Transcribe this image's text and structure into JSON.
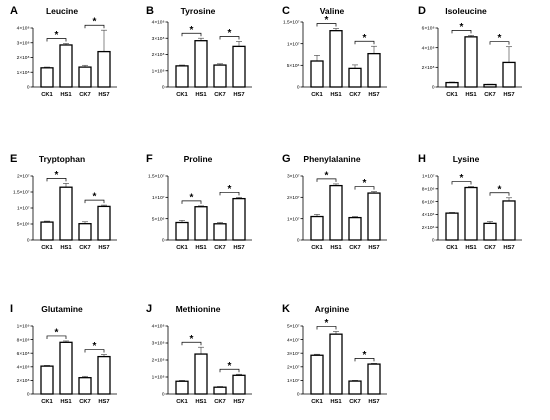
{
  "figure": {
    "panels": [
      {
        "letter": "A",
        "title": "Leucine"
      },
      {
        "letter": "B",
        "title": "Tyrosine"
      },
      {
        "letter": "C",
        "title": "Valine"
      },
      {
        "letter": "D",
        "title": "Isoleucine"
      },
      {
        "letter": "E",
        "title": "Tryptophan"
      },
      {
        "letter": "F",
        "title": "Proline"
      },
      {
        "letter": "G",
        "title": "Phenylalanine"
      },
      {
        "letter": "H",
        "title": "Lysine"
      },
      {
        "letter": "I",
        "title": "Glutamine"
      },
      {
        "letter": "J",
        "title": "Methionine"
      },
      {
        "letter": "K",
        "title": "Arginine"
      }
    ]
  },
  "chart_data": [
    {
      "type": "bar",
      "letter": "A",
      "title": "Leucine",
      "categories": [
        "CK1",
        "HS1",
        "CK7",
        "HS7"
      ],
      "values": [
        130000000.0,
        285000000.0,
        135000000.0,
        240000000.0
      ],
      "errors": [
        5000000.0,
        10000000.0,
        12000000.0,
        145000000.0
      ],
      "ylim": [
        0,
        400000000.0
      ],
      "yticks": [
        0,
        100000000.0,
        200000000.0,
        300000000.0,
        400000000.0
      ],
      "ytick_labels": [
        "0",
        "1×10⁸",
        "2×10⁸",
        "3×10⁸",
        "4×10⁸"
      ],
      "significance": [
        {
          "pair": [
            "CK1",
            "HS1"
          ],
          "label": "*"
        },
        {
          "pair": [
            "CK7",
            "HS7"
          ],
          "label": "*"
        }
      ],
      "xlabel": "",
      "ylabel": ""
    },
    {
      "type": "bar",
      "letter": "B",
      "title": "Tyrosine",
      "categories": [
        "CK1",
        "HS1",
        "CK7",
        "HS7"
      ],
      "values": [
        130000000.0,
        285000000.0,
        135000000.0,
        250000000.0
      ],
      "errors": [
        5000000.0,
        15000000.0,
        8000000.0,
        30000000.0
      ],
      "ylim": [
        0,
        400000000.0
      ],
      "yticks": [
        0,
        100000000.0,
        200000000.0,
        300000000.0,
        400000000.0
      ],
      "ytick_labels": [
        "0",
        "1×10⁸",
        "2×10⁸",
        "3×10⁸",
        "4×10⁸"
      ],
      "significance": [
        {
          "pair": [
            "CK1",
            "HS1"
          ],
          "label": "*"
        },
        {
          "pair": [
            "CK7",
            "HS7"
          ],
          "label": "*"
        }
      ],
      "xlabel": "",
      "ylabel": ""
    },
    {
      "type": "bar",
      "letter": "C",
      "title": "Valine",
      "categories": [
        "CK1",
        "HS1",
        "CK7",
        "HS7"
      ],
      "values": [
        6000000.0,
        13000000.0,
        4300000.0,
        7700000.0
      ],
      "errors": [
        1300000.0,
        500000.0,
        800000.0,
        1700000.0
      ],
      "ylim": [
        0,
        15000000.0
      ],
      "yticks": [
        0,
        5000000.0,
        10000000.0,
        15000000.0
      ],
      "ytick_labels": [
        "0",
        "5×10⁶",
        "1×10⁷",
        "1.5×10⁷"
      ],
      "significance": [
        {
          "pair": [
            "CK1",
            "HS1"
          ],
          "label": "*"
        },
        {
          "pair": [
            "CK7",
            "HS7"
          ],
          "label": "*"
        }
      ],
      "xlabel": "",
      "ylabel": ""
    },
    {
      "type": "bar",
      "letter": "D",
      "title": "Isoleucine",
      "categories": [
        "CK1",
        "HS1",
        "CK7",
        "HS7"
      ],
      "values": [
        45000000.0,
        510000000.0,
        25000000.0,
        250000000.0
      ],
      "errors": [
        5000000.0,
        15000000.0,
        3000000.0,
        160000000.0
      ],
      "ylim": [
        0,
        600000000.0
      ],
      "yticks": [
        0,
        200000000.0,
        400000000.0,
        600000000.0
      ],
      "ytick_labels": [
        "0",
        "2×10⁸",
        "4×10⁸",
        "6×10⁸"
      ],
      "significance": [
        {
          "pair": [
            "CK1",
            "HS1"
          ],
          "label": "*"
        },
        {
          "pair": [
            "CK7",
            "HS7"
          ],
          "label": "*"
        }
      ],
      "xlabel": "",
      "ylabel": ""
    },
    {
      "type": "bar",
      "letter": "E",
      "title": "Tryptophan",
      "categories": [
        "CK1",
        "HS1",
        "CK7",
        "HS7"
      ],
      "values": [
        5600000.0,
        16500000.0,
        5100000.0,
        10500000.0
      ],
      "errors": [
        300000.0,
        1200000.0,
        600000.0,
        400000.0
      ],
      "ylim": [
        0,
        20000000.0
      ],
      "yticks": [
        0,
        5000000.0,
        10000000.0,
        15000000.0,
        20000000.0
      ],
      "ytick_labels": [
        "0",
        "5×10⁶",
        "1×10⁷",
        "1.5×10⁷",
        "2×10⁷"
      ],
      "significance": [
        {
          "pair": [
            "CK1",
            "HS1"
          ],
          "label": "*"
        },
        {
          "pair": [
            "CK7",
            "HS7"
          ],
          "label": "*"
        }
      ],
      "xlabel": "",
      "ylabel": ""
    },
    {
      "type": "bar",
      "letter": "F",
      "title": "Proline",
      "categories": [
        "CK1",
        "HS1",
        "CK7",
        "HS7"
      ],
      "values": [
        4100000.0,
        7800000.0,
        3800000.0,
        9700000.0
      ],
      "errors": [
        500000.0,
        200000.0,
        300000.0,
        300000.0
      ],
      "ylim": [
        0,
        15000000.0
      ],
      "yticks": [
        0,
        5000000.0,
        10000000.0,
        15000000.0
      ],
      "ytick_labels": [
        "0",
        "5×10⁶",
        "1×10⁷",
        "1.5×10⁷"
      ],
      "significance": [
        {
          "pair": [
            "CK1",
            "HS1"
          ],
          "label": "*"
        },
        {
          "pair": [
            "CK7",
            "HS7"
          ],
          "label": "*"
        }
      ],
      "xlabel": "",
      "ylabel": ""
    },
    {
      "type": "bar",
      "letter": "G",
      "title": "Phenylalanine",
      "categories": [
        "CK1",
        "HS1",
        "CK7",
        "HS7"
      ],
      "values": [
        11000000.0,
        25500000.0,
        10500000.0,
        22000000.0
      ],
      "errors": [
        1000000.0,
        800000.0,
        500000.0,
        700000.0
      ],
      "ylim": [
        0,
        30000000.0
      ],
      "yticks": [
        0,
        10000000.0,
        20000000.0,
        30000000.0
      ],
      "ytick_labels": [
        "0",
        "1×10⁷",
        "2×10⁷",
        "3×10⁷"
      ],
      "significance": [
        {
          "pair": [
            "CK1",
            "HS1"
          ],
          "label": "*"
        },
        {
          "pair": [
            "CK7",
            "HS7"
          ],
          "label": "*"
        }
      ],
      "xlabel": "",
      "ylabel": ""
    },
    {
      "type": "bar",
      "letter": "H",
      "title": "Lysine",
      "categories": [
        "CK1",
        "HS1",
        "CK7",
        "HS7"
      ],
      "values": [
        4200000.0,
        8200000.0,
        2600000.0,
        6100000.0
      ],
      "errors": [
        100000.0,
        150000.0,
        300000.0,
        500000.0
      ],
      "ylim": [
        0,
        10000000.0
      ],
      "yticks": [
        0,
        2000000.0,
        4000000.0,
        6000000.0,
        8000000.0,
        10000000.0
      ],
      "ytick_labels": [
        "0",
        "2×10⁶",
        "4×10⁶",
        "6×10⁶",
        "8×10⁶",
        "1×10⁷"
      ],
      "significance": [
        {
          "pair": [
            "CK1",
            "HS1"
          ],
          "label": "*"
        },
        {
          "pair": [
            "CK7",
            "HS7"
          ],
          "label": "*"
        }
      ],
      "xlabel": "",
      "ylabel": ""
    },
    {
      "type": "bar",
      "letter": "I",
      "title": "Glutamine",
      "categories": [
        "CK1",
        "HS1",
        "CK7",
        "HS7"
      ],
      "values": [
        410000000.0,
        760000000.0,
        240000000.0,
        550000000.0
      ],
      "errors": [
        10000000.0,
        20000000.0,
        20000000.0,
        30000000.0
      ],
      "ylim": [
        0,
        1000000000.0
      ],
      "yticks": [
        0,
        200000000.0,
        400000000.0,
        600000000.0,
        800000000.0,
        1000000000.0
      ],
      "ytick_labels": [
        "0",
        "2×10⁸",
        "4×10⁸",
        "6×10⁸",
        "8×10⁸",
        "1×10⁹"
      ],
      "significance": [
        {
          "pair": [
            "CK1",
            "HS1"
          ],
          "label": "*"
        },
        {
          "pair": [
            "CK7",
            "HS7"
          ],
          "label": "*"
        }
      ],
      "xlabel": "",
      "ylabel": ""
    },
    {
      "type": "bar",
      "letter": "J",
      "title": "Methionine",
      "categories": [
        "CK1",
        "HS1",
        "CK7",
        "HS7"
      ],
      "values": [
        75000000.0,
        235000000.0,
        40000000.0,
        110000000.0
      ],
      "errors": [
        5000000.0,
        40000000.0,
        4000000.0,
        6000000.0
      ],
      "ylim": [
        0,
        400000000.0
      ],
      "yticks": [
        0,
        100000000.0,
        200000000.0,
        300000000.0,
        400000000.0
      ],
      "ytick_labels": [
        "0",
        "1×10⁸",
        "2×10⁸",
        "3×10⁸",
        "4×10⁸"
      ],
      "significance": [
        {
          "pair": [
            "CK1",
            "HS1"
          ],
          "label": "*"
        },
        {
          "pair": [
            "CK7",
            "HS7"
          ],
          "label": "*"
        }
      ],
      "xlabel": "",
      "ylabel": ""
    },
    {
      "type": "bar",
      "letter": "K",
      "title": "Arginine",
      "categories": [
        "CK1",
        "HS1",
        "CK7",
        "HS7"
      ],
      "values": [
        28500000.0,
        44000000.0,
        9500000.0,
        22000000.0
      ],
      "errors": [
        700000.0,
        2000000.0,
        500000.0,
        500000.0
      ],
      "ylim": [
        0,
        50000000.0
      ],
      "yticks": [
        0,
        10000000.0,
        20000000.0,
        30000000.0,
        40000000.0,
        50000000.0
      ],
      "ytick_labels": [
        "0",
        "1×10⁷",
        "2×10⁷",
        "3×10⁷",
        "4×10⁷",
        "5×10⁷"
      ],
      "significance": [
        {
          "pair": [
            "CK1",
            "HS1"
          ],
          "label": "*"
        },
        {
          "pair": [
            "CK7",
            "HS7"
          ],
          "label": "*"
        }
      ],
      "xlabel": "",
      "ylabel": ""
    }
  ]
}
